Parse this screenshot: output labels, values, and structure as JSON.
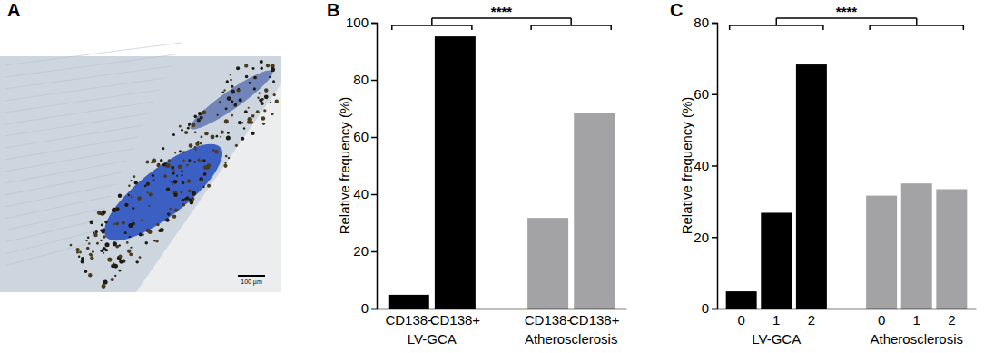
{
  "chart_data": [
    {
      "type": "image",
      "panel_label": "A",
      "scale_bar_label": "100 µm"
    },
    {
      "type": "bar",
      "panel_label": "B",
      "y_label": "Relative frequency (%)",
      "categories": [
        "CD138-",
        "CD138+",
        "CD138-",
        "CD138+"
      ],
      "series": [
        {
          "name": "LV-GCA",
          "color": "#000000",
          "values": [
            4.8,
            95.2,
            null,
            null
          ]
        },
        {
          "name": "Atherosclerosis",
          "color": "#a3a3a6",
          "values": [
            null,
            null,
            31.7,
            68.3
          ]
        }
      ],
      "ylim": [
        0,
        100
      ],
      "yticks": [
        0,
        20,
        40,
        60,
        80,
        100
      ],
      "annotations": [
        {
          "text": "****"
        }
      ],
      "grid": false
    },
    {
      "type": "bar",
      "panel_label": "C",
      "y_label": "Relative frequency (%)",
      "categories": [
        "0",
        "1",
        "2",
        "0",
        "1",
        "2"
      ],
      "series": [
        {
          "name": "LV-GCA",
          "color": "#000000",
          "values": [
            4.8,
            26.8,
            68.3,
            null,
            null,
            null
          ]
        },
        {
          "name": "Atherosclerosis",
          "color": "#a3a3a6",
          "values": [
            null,
            null,
            null,
            31.6,
            35.0,
            33.4
          ]
        }
      ],
      "ylim": [
        0,
        80
      ],
      "yticks": [
        0,
        20,
        40,
        60,
        80
      ],
      "annotations": [
        {
          "text": "****"
        }
      ],
      "grid": false
    }
  ]
}
